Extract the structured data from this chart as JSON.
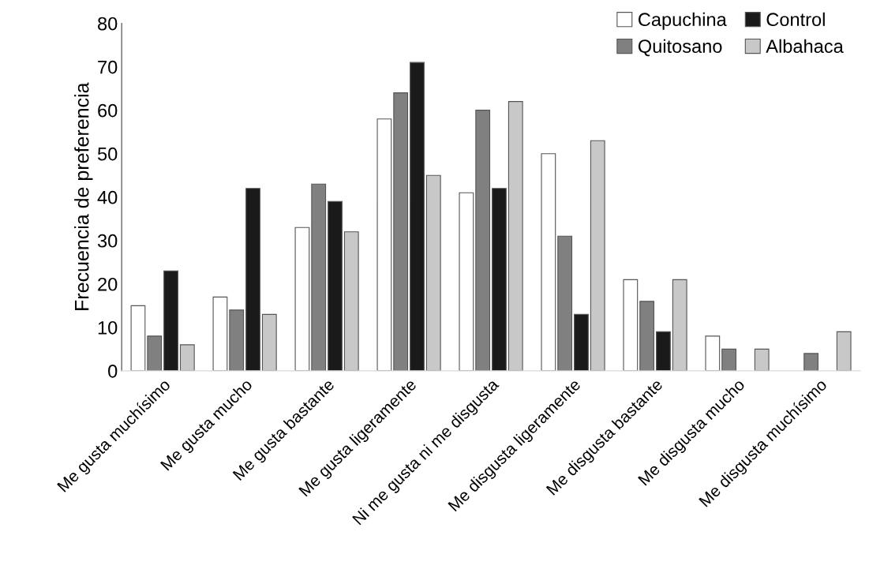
{
  "chart_data": {
    "type": "bar",
    "ylabel": "Frecuencia de preferencia",
    "categories": [
      "Me gusta muchísimo",
      "Me gusta mucho",
      "Me gusta bastante",
      "Me gusta ligeramente",
      "Ni me gusta ni me disgusta",
      "Me disgusta ligeramente",
      "Me disgusta bastante",
      "Me disgusta mucho",
      "Me disgusta muchísimo"
    ],
    "series": [
      {
        "name": "Capuchina",
        "color": "#ffffff",
        "values": [
          15,
          17,
          33,
          58,
          41,
          50,
          21,
          8,
          0
        ]
      },
      {
        "name": "Quitosano",
        "color": "#808080",
        "values": [
          8,
          14,
          43,
          64,
          60,
          31,
          16,
          5,
          4
        ]
      },
      {
        "name": "Control",
        "color": "#1a1a1a",
        "values": [
          23,
          42,
          39,
          71,
          42,
          13,
          9,
          0,
          0
        ]
      },
      {
        "name": "Albahaca",
        "color": "#c8c8c8",
        "values": [
          6,
          13,
          32,
          45,
          62,
          53,
          21,
          5,
          9
        ]
      }
    ],
    "ylim": [
      0,
      80
    ],
    "yticks": [
      0,
      10,
      20,
      30,
      40,
      50,
      60,
      70,
      80
    ],
    "grid": false,
    "legend": "top right"
  }
}
